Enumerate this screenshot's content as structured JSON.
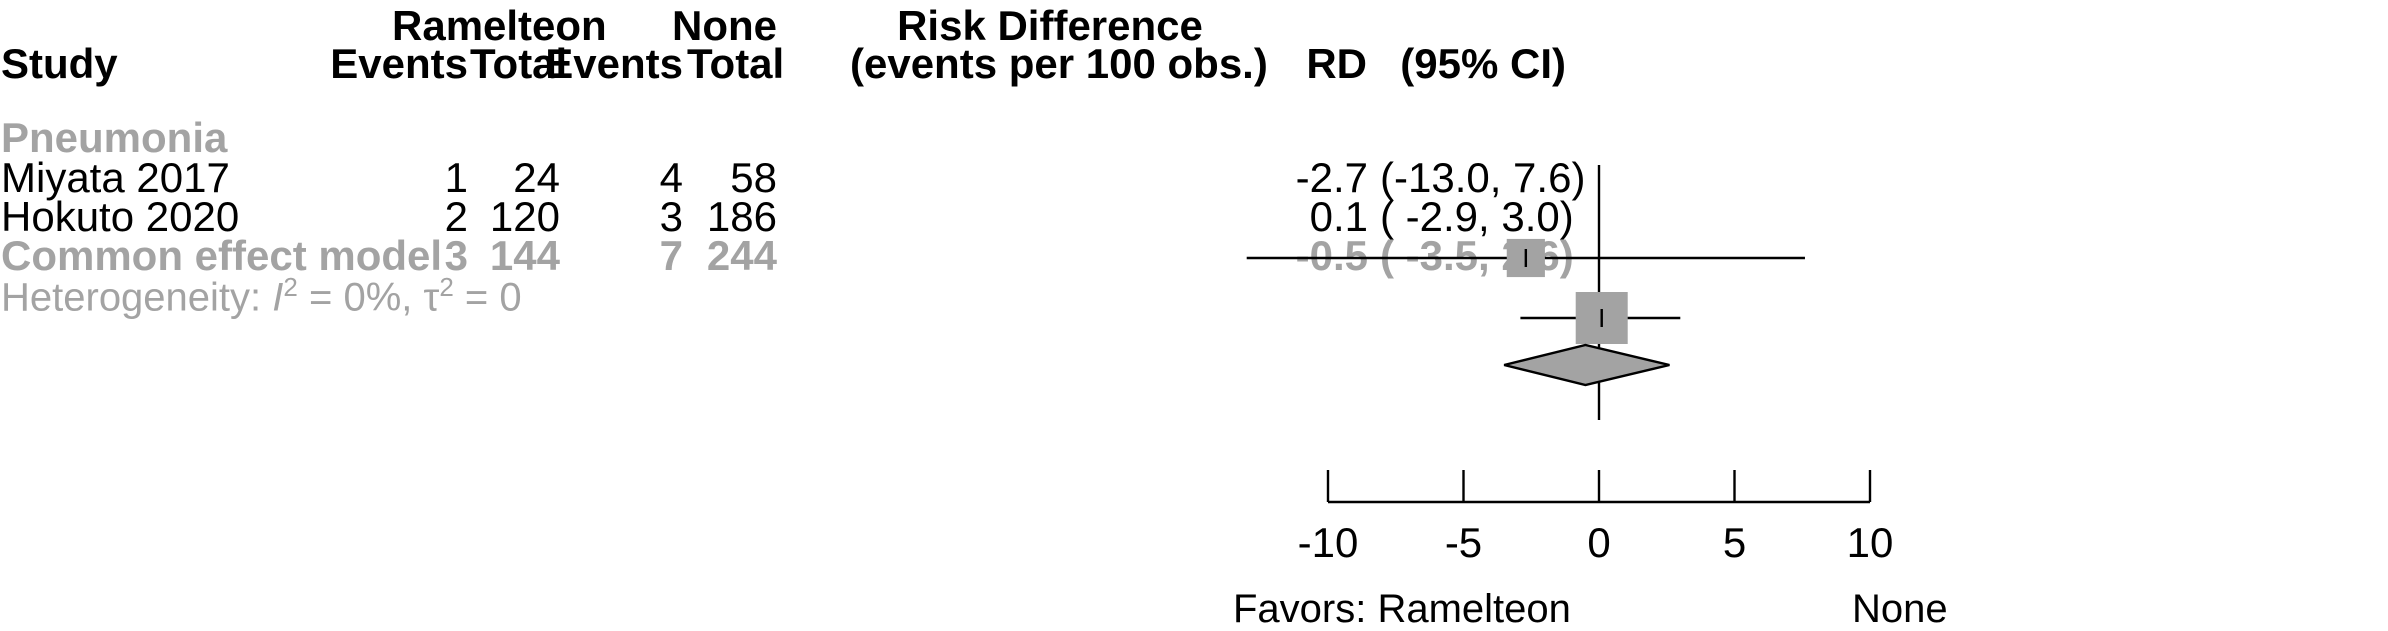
{
  "header": {
    "study": "Study",
    "group1_name": "Ramelteon",
    "group2_name": "None",
    "events": "Events",
    "total": "Total",
    "plot_title_1": "Risk Difference",
    "plot_title_2": "(events per 100 obs.)",
    "rd": "RD",
    "ci": "(95% CI)"
  },
  "subgroup_label": "Pneumonia",
  "rows": [
    {
      "study": "Miyata 2017",
      "e1": "1",
      "t1": "24",
      "e2": "4",
      "t2": "58",
      "rd": "-2.7",
      "ci": "(-13.0, 7.6)"
    },
    {
      "study": "Hokuto 2020",
      "e1": "2",
      "t1": "120",
      "e2": "3",
      "t2": "186",
      "rd": "0.1",
      "ci": "( -2.9, 3.0)"
    }
  ],
  "pooled": {
    "label": "Common effect model",
    "e1": "3",
    "t1": "144",
    "e2": "7",
    "t2": "244",
    "rd": "-0.5",
    "ci": "( -3.5, 2.6)"
  },
  "heterogeneity": {
    "prefix": "Heterogeneity: ",
    "i2_symbol": "I",
    "i2_value": " = 0%, ",
    "tau2_symbol": "τ",
    "tau2_value": " = 0",
    "superscript": "2"
  },
  "axis": {
    "favors_left": "Favors: Ramelteon",
    "favors_right": "None"
  },
  "colors": {
    "marker": "#a3a3a3",
    "text_muted": "#a3a3a3",
    "line": "#000000"
  },
  "chart_data": {
    "type": "forest",
    "measure": "Risk Difference (events per 100 obs.)",
    "xlim": [
      -10,
      10
    ],
    "ticks": [
      -10,
      -5,
      0,
      5,
      10
    ],
    "reference_line": 0,
    "studies": [
      {
        "name": "Miyata 2017",
        "estimate": -2.7,
        "lower": -13.0,
        "upper": 7.6,
        "weight": 0.35
      },
      {
        "name": "Hokuto 2020",
        "estimate": 0.1,
        "lower": -2.9,
        "upper": 3.0,
        "weight": 0.65
      }
    ],
    "pooled": {
      "name": "Common effect model",
      "estimate": -0.5,
      "lower": -3.5,
      "upper": 2.6
    }
  }
}
